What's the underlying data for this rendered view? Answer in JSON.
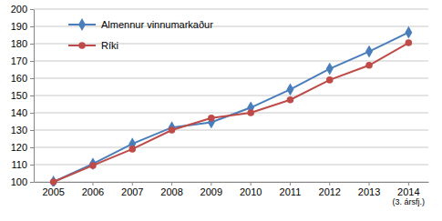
{
  "chart_data": {
    "type": "line",
    "categories": [
      "2005",
      "2006",
      "2007",
      "2008",
      "2009",
      "2010",
      "2011",
      "2012",
      "2013",
      "2014\n(3. ársfj.)"
    ],
    "series": [
      {
        "name": "Almennur vinnumarkaður",
        "color": "#4a7ebb",
        "marker": "diamond",
        "values": [
          100,
          110.5,
          122,
          131.5,
          134.5,
          143,
          153.5,
          165.5,
          175.5,
          186.5
        ]
      },
      {
        "name": "Ríki",
        "color": "#be4b48",
        "marker": "circle",
        "values": [
          100,
          109.5,
          119,
          130,
          137,
          140,
          147.5,
          159,
          167.5,
          180.5
        ]
      }
    ],
    "ylim": [
      100,
      200
    ],
    "yticks": [
      100,
      110,
      120,
      130,
      140,
      150,
      160,
      170,
      180,
      190,
      200
    ],
    "grid": true,
    "legend": "upper left"
  }
}
